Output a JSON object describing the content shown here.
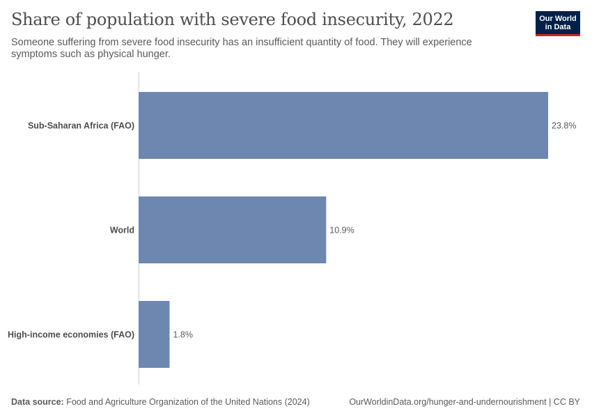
{
  "header": {
    "title": "Share of population with severe food insecurity, 2022",
    "subtitle": "Someone suffering from severe food insecurity has an insufficient quantity of food. They will experience symptoms such as physical hunger.",
    "logo_line1": "Our World",
    "logo_line2": "in Data"
  },
  "colors": {
    "bar": "#6d87b0",
    "axis": "#cccccc",
    "label": "#4e4e4e",
    "value": "#5b5b5b",
    "logo_bg": "#002147",
    "logo_accent": "#ce261e"
  },
  "chart_data": {
    "type": "bar",
    "orientation": "horizontal",
    "title": "Share of population with severe food insecurity, 2022",
    "categories": [
      "Sub-Saharan Africa (FAO)",
      "World",
      "High-income economies (FAO)"
    ],
    "values": [
      23.8,
      10.9,
      1.8
    ],
    "value_labels": [
      "23.8%",
      "10.9%",
      "1.8%"
    ],
    "xlim": [
      0,
      23.8
    ],
    "grid": false,
    "legend": "none"
  },
  "footer": {
    "source_label": "Data source:",
    "source_text": "Food and Agriculture Organization of the United Nations (2024)",
    "link_text": "OurWorldinData.org/hunger-and-undernourishment",
    "license": "| CC BY"
  }
}
